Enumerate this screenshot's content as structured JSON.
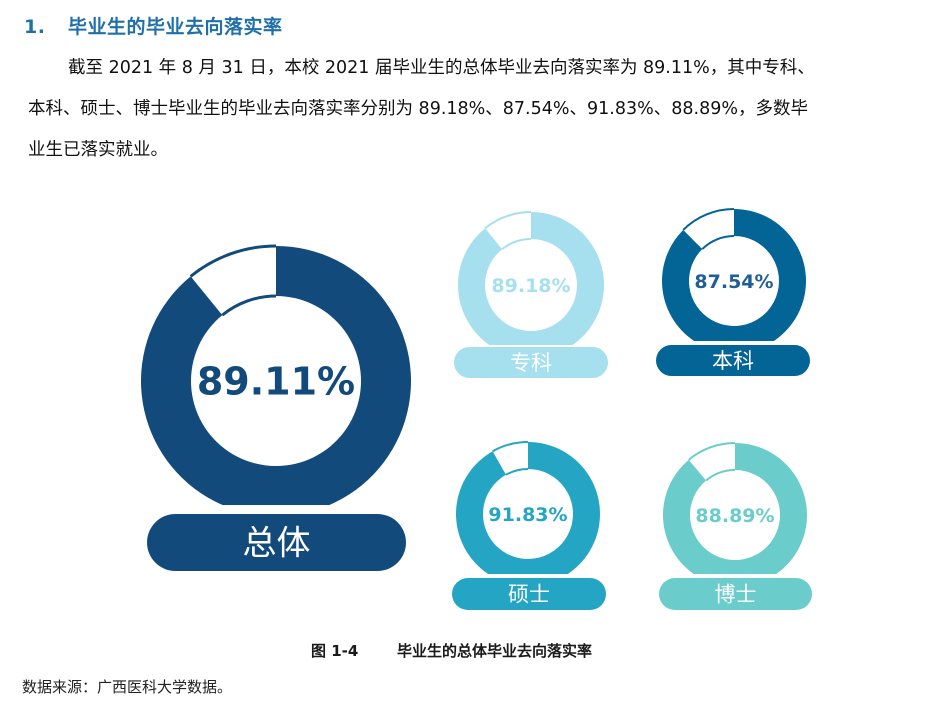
{
  "heading": {
    "number": "1.",
    "title": "毕业生的毕业去向落实率"
  },
  "paragraph": {
    "line1": "截至 2021 年 8 月 31 日，本校 2021 届毕业生的总体毕业去向落实率为 89.11%，其中专科、",
    "line2": "本科、硕士、博士毕业生的毕业去向落实率分别为 89.18%、87.54%、91.83%、88.89%，多数毕",
    "line3": "业生已落实就业。"
  },
  "caption": {
    "figure": "图 1-4",
    "title": "毕业生的总体毕业去向落实率"
  },
  "source": "数据来源：广西医科大学数据。",
  "chart_data": {
    "type": "pie",
    "subtype": "donut",
    "title": "毕业生的总体毕业去向落实率",
    "categories": [
      "总体",
      "专科",
      "本科",
      "硕士",
      "博士"
    ],
    "values": [
      89.11,
      89.18,
      87.54,
      91.83,
      88.89
    ],
    "unit": "%",
    "labels": [
      "89.11%",
      "89.18%",
      "87.54%",
      "91.83%",
      "88.89%"
    ],
    "colors": [
      "#134a7c",
      "#a6e0ee",
      "#036496",
      "#25a5c4",
      "#6bcdcb"
    ],
    "items": [
      {
        "name": "总体",
        "value": 89.11,
        "label": "89.11%",
        "color": "#134a7c",
        "label_color": "#134a7c"
      },
      {
        "name": "专科",
        "value": 89.18,
        "label": "89.18%",
        "color": "#a6e0ee",
        "label_color": "#a6e0ee"
      },
      {
        "name": "本科",
        "value": 87.54,
        "label": "87.54%",
        "color": "#036496",
        "label_color": "#1f5f96"
      },
      {
        "name": "硕士",
        "value": 91.83,
        "label": "91.83%",
        "color": "#25a5c4",
        "label_color": "#25a5c4"
      },
      {
        "name": "博士",
        "value": 88.89,
        "label": "88.89%",
        "color": "#6bcdcb",
        "label_color": "#6bcdcb"
      }
    ]
  }
}
